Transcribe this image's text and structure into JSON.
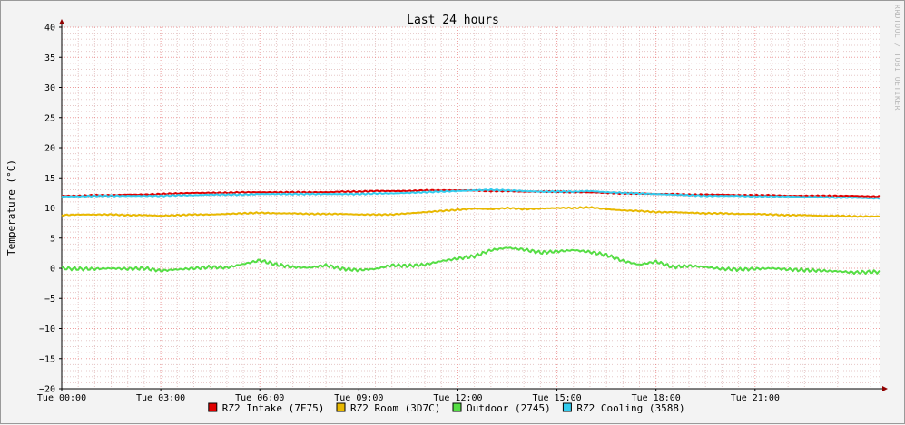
{
  "chart_data": {
    "type": "line",
    "title": "Last 24 hours",
    "ylabel": "Temperature (°C)",
    "xlabel": "",
    "watermark": "RRDTOOL / TOBI OETIKER",
    "ylim": [
      -20,
      40
    ],
    "y_ticks": [
      -20,
      -15,
      -10,
      -5,
      0,
      5,
      10,
      15,
      20,
      25,
      30,
      35,
      40
    ],
    "y_tick_labels": [
      "−20",
      "−15",
      "−10",
      "−5",
      "0",
      "5",
      "10",
      "15",
      "20",
      "25",
      "30",
      "35",
      "40"
    ],
    "xlim_hours": [
      0,
      24.8
    ],
    "x_ticks": [
      {
        "hour": 0,
        "label": "Tue 00:00"
      },
      {
        "hour": 3,
        "label": "Tue 03:00"
      },
      {
        "hour": 6,
        "label": "Tue 06:00"
      },
      {
        "hour": 9,
        "label": "Tue 09:00"
      },
      {
        "hour": 12,
        "label": "Tue 12:00"
      },
      {
        "hour": 15,
        "label": "Tue 15:00"
      },
      {
        "hour": 18,
        "label": "Tue 18:00"
      },
      {
        "hour": 21,
        "label": "Tue 21:00"
      }
    ],
    "grid": true,
    "legend_position": "bottom-center",
    "x_hours": [
      0,
      0.5,
      1,
      1.5,
      2,
      2.5,
      3,
      3.5,
      4,
      4.5,
      5,
      5.5,
      6,
      6.5,
      7,
      7.5,
      8,
      8.5,
      9,
      9.5,
      10,
      10.5,
      11,
      11.5,
      12,
      12.5,
      13,
      13.5,
      14,
      14.5,
      15,
      15.5,
      16,
      16.5,
      17,
      17.5,
      18,
      18.5,
      19,
      19.5,
      20,
      20.5,
      21,
      21.5,
      22,
      22.5,
      23,
      23.5,
      24,
      24.5
    ],
    "series": [
      {
        "name": "RZ2 Intake (7F75)",
        "color": "#e00000",
        "values": [
          12.0,
          12.0,
          12.1,
          12.1,
          12.2,
          12.2,
          12.3,
          12.4,
          12.5,
          12.5,
          12.5,
          12.6,
          12.6,
          12.6,
          12.6,
          12.6,
          12.6,
          12.7,
          12.7,
          12.8,
          12.8,
          12.8,
          12.9,
          12.9,
          12.9,
          12.9,
          12.8,
          12.8,
          12.7,
          12.7,
          12.7,
          12.6,
          12.6,
          12.5,
          12.4,
          12.4,
          12.3,
          12.3,
          12.2,
          12.2,
          12.2,
          12.1,
          12.1,
          12.1,
          12.0,
          12.0,
          12.0,
          12.0,
          12.0,
          11.9
        ]
      },
      {
        "name": "RZ2 Room (3D7C)",
        "color": "#e8b800",
        "values": [
          8.8,
          8.9,
          8.9,
          8.9,
          8.8,
          8.8,
          8.7,
          8.8,
          8.9,
          8.9,
          9.0,
          9.1,
          9.2,
          9.1,
          9.1,
          9.0,
          9.0,
          9.0,
          8.9,
          8.9,
          8.9,
          9.1,
          9.3,
          9.5,
          9.7,
          9.9,
          9.8,
          10.0,
          9.8,
          9.9,
          10.0,
          10.0,
          10.1,
          9.8,
          9.6,
          9.5,
          9.3,
          9.3,
          9.2,
          9.1,
          9.1,
          9.0,
          9.0,
          8.9,
          8.8,
          8.8,
          8.7,
          8.7,
          8.6,
          8.6
        ]
      },
      {
        "name": "Outdoor (2745)",
        "color": "#55dd44",
        "values": [
          0.0,
          -0.1,
          -0.1,
          0.0,
          -0.1,
          0.0,
          -0.4,
          -0.2,
          0.0,
          0.2,
          0.1,
          0.7,
          1.3,
          0.6,
          0.2,
          0.1,
          0.5,
          -0.1,
          -0.3,
          -0.1,
          0.5,
          0.4,
          0.6,
          1.2,
          1.6,
          2.0,
          3.0,
          3.4,
          3.1,
          2.6,
          2.8,
          3.0,
          2.7,
          2.2,
          1.2,
          0.6,
          1.1,
          0.2,
          0.4,
          0.2,
          -0.1,
          -0.2,
          -0.1,
          0.0,
          -0.2,
          -0.3,
          -0.4,
          -0.5,
          -0.7,
          -0.6
        ]
      },
      {
        "name": "RZ2 Cooling (3588)",
        "color": "#33ccee",
        "values": [
          11.9,
          11.9,
          12.0,
          12.0,
          12.0,
          12.0,
          12.0,
          12.1,
          12.1,
          12.2,
          12.2,
          12.2,
          12.3,
          12.3,
          12.3,
          12.3,
          12.3,
          12.3,
          12.3,
          12.4,
          12.4,
          12.5,
          12.6,
          12.7,
          12.8,
          12.9,
          13.0,
          12.9,
          12.8,
          12.7,
          12.7,
          12.7,
          12.8,
          12.6,
          12.5,
          12.4,
          12.3,
          12.2,
          12.1,
          12.0,
          12.0,
          12.0,
          11.9,
          11.9,
          11.9,
          11.8,
          11.8,
          11.7,
          11.7,
          11.6
        ]
      }
    ]
  }
}
